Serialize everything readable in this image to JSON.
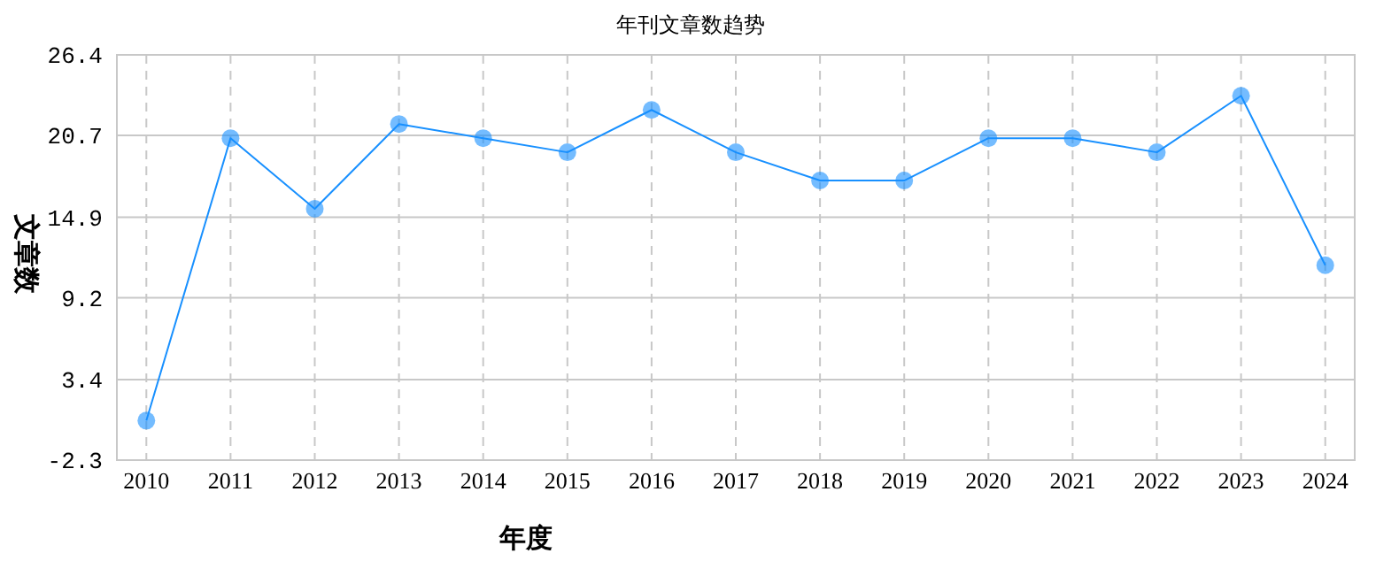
{
  "chart_data": {
    "type": "line",
    "title": "年刊文章数趋势",
    "xlabel": "年度",
    "ylabel": "文章数",
    "categories": [
      "2010",
      "2011",
      "2012",
      "2013",
      "2014",
      "2015",
      "2016",
      "2017",
      "2018",
      "2019",
      "2020",
      "2021",
      "2022",
      "2023",
      "2024"
    ],
    "series": [
      {
        "color": "#1890ff",
        "values": [
          0.5,
          20.5,
          15.5,
          21.5,
          20.5,
          19.5,
          22.5,
          19.5,
          17.5,
          17.5,
          20.5,
          20.5,
          19.5,
          23.5,
          11.5
        ]
      }
    ],
    "ylim": [
      -2.3,
      26.4
    ],
    "yticks": [
      -2.3,
      3.4,
      9.2,
      14.9,
      20.7,
      26.4
    ],
    "grid": true,
    "marker": "circle"
  }
}
